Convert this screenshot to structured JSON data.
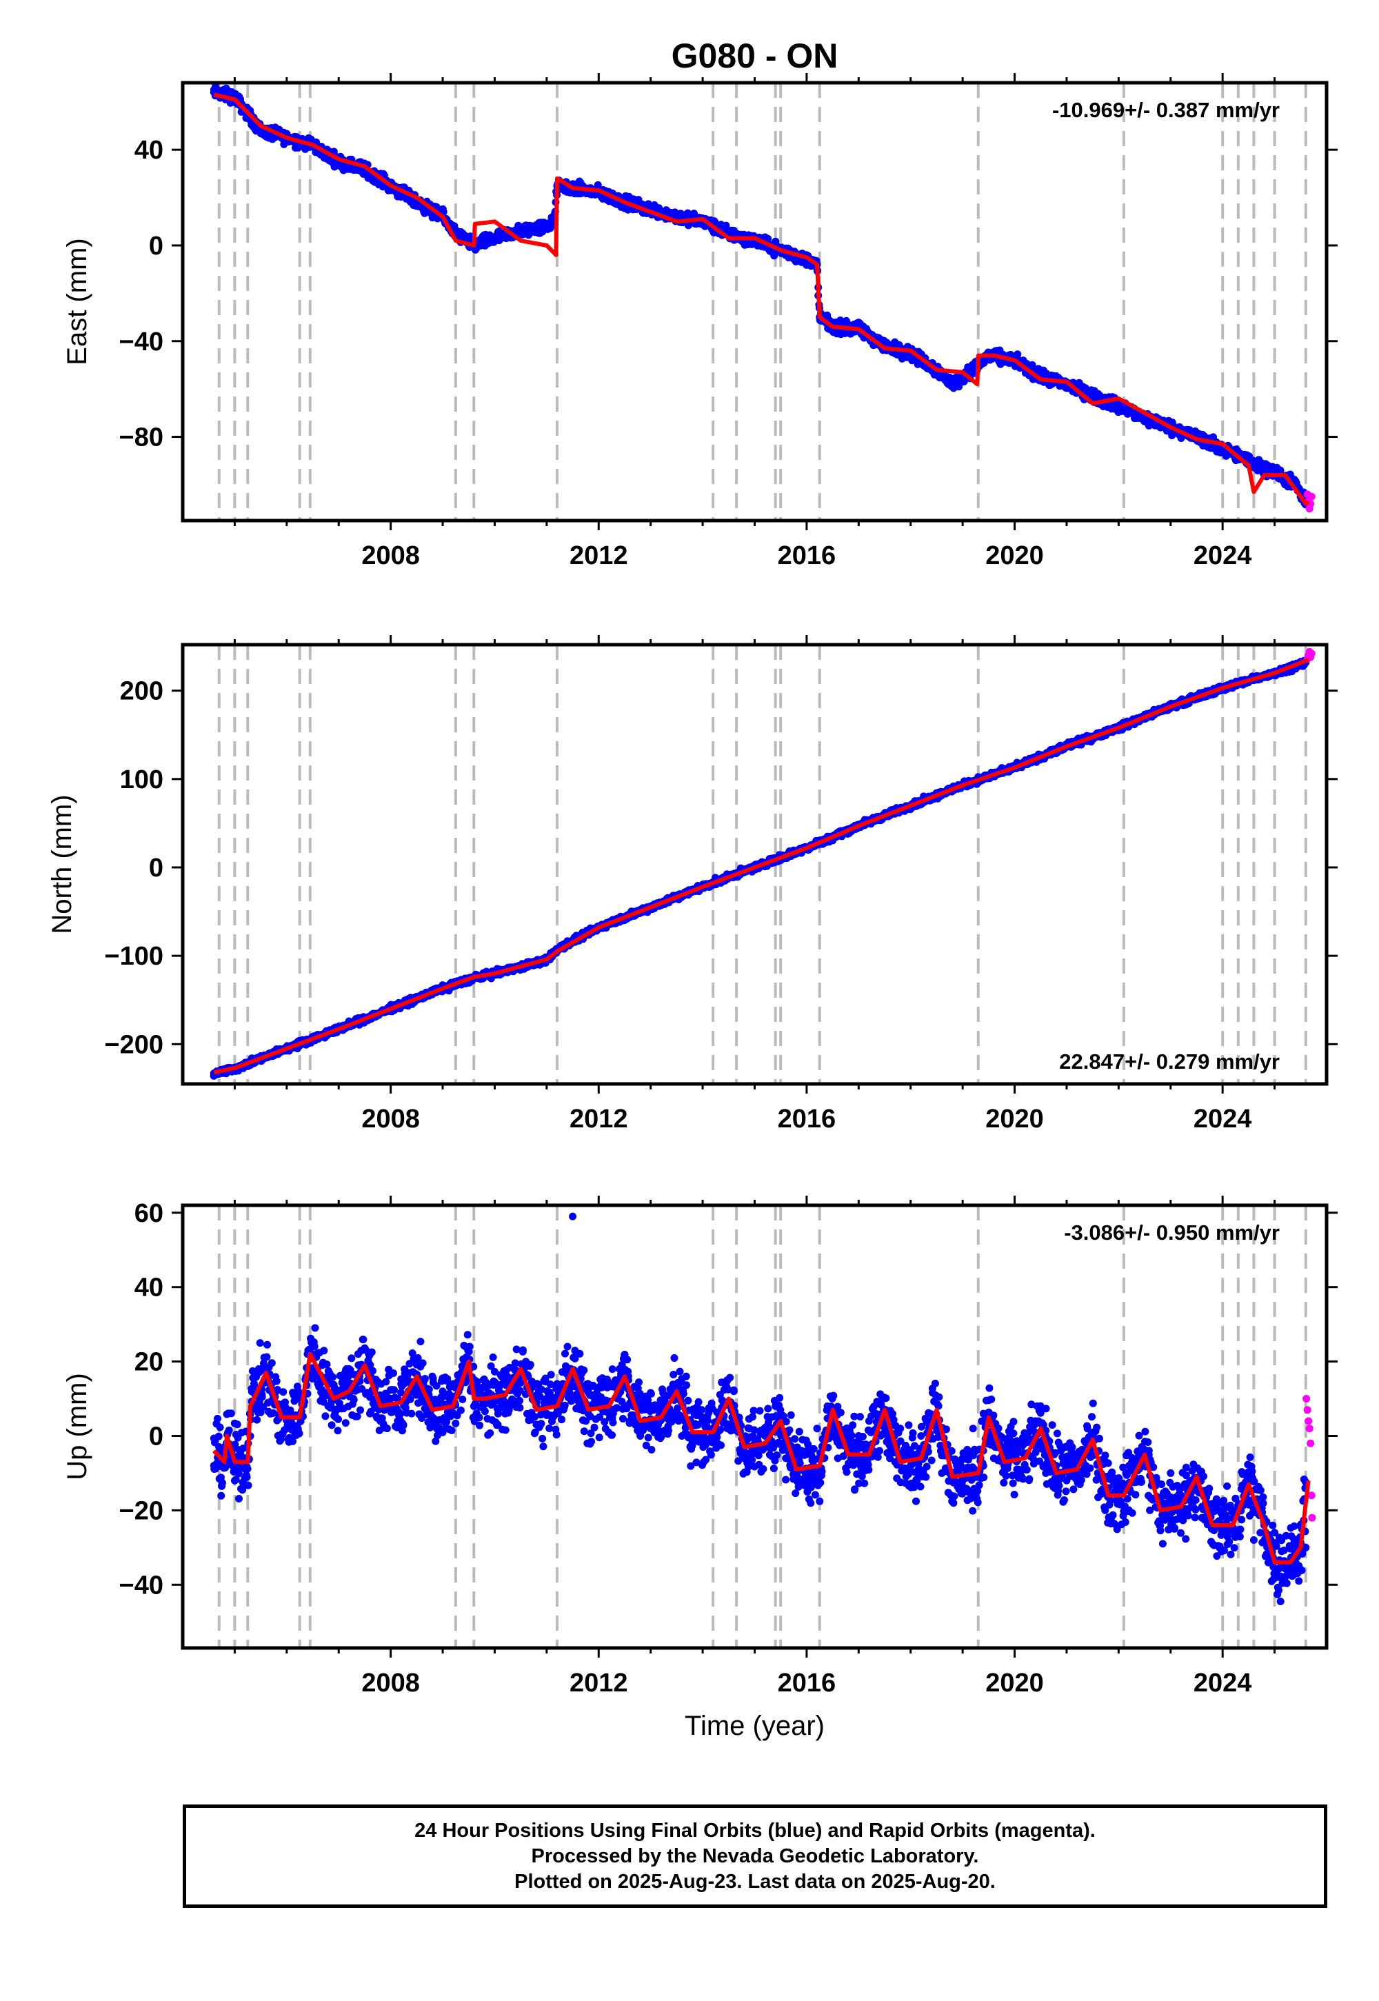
{
  "chart_data": {
    "type": "scatter",
    "title": "G080 - ON",
    "xlabel": "Time (year)",
    "x_range": [
      2004.0,
      2026.0
    ],
    "x_ticks": [
      2008,
      2012,
      2016,
      2020,
      2024
    ],
    "legend": "none",
    "grid": false,
    "colors": {
      "final": "#0000ff",
      "rapid": "#ff00ff",
      "model": "#ff0000",
      "steps": "#bbbbbb"
    },
    "step_epochs": [
      2004.7,
      2005.0,
      2005.25,
      2006.25,
      2006.45,
      2009.25,
      2009.6,
      2011.2,
      2014.2,
      2014.65,
      2015.4,
      2015.5,
      2016.25,
      2019.3,
      2022.1,
      2024.0,
      2024.3,
      2024.6,
      2025.0,
      2025.6
    ],
    "panels": [
      {
        "ylabel": "East (mm)",
        "ylim": [
          -115,
          68
        ],
        "y_ticks": [
          -80,
          -40,
          0,
          40
        ],
        "rate_text": "-10.969+/- 0.387 mm/yr",
        "rate_position": "top-right",
        "series": [
          {
            "name": "Final Orbits",
            "kind": "points",
            "x": [
              2004.6,
              2005.0,
              2005.5,
              2006.0,
              2006.5,
              2007.0,
              2007.5,
              2008.0,
              2008.5,
              2009.0,
              2009.25,
              2009.6,
              2010.0,
              2010.5,
              2011.0,
              2011.15,
              2011.2,
              2011.5,
              2012.0,
              2012.5,
              2013.0,
              2013.5,
              2014.0,
              2014.5,
              2015.0,
              2015.5,
              2016.0,
              2016.2,
              2016.25,
              2016.5,
              2017.0,
              2017.5,
              2018.0,
              2018.5,
              2018.8,
              2019.2,
              2019.5,
              2020.0,
              2020.5,
              2021.0,
              2021.5,
              2022.0,
              2022.5,
              2023.0,
              2023.5,
              2024.0,
              2024.5,
              2025.0,
              2025.4,
              2025.6
            ],
            "y": [
              64,
              62,
              48,
              45,
              42,
              35,
              32,
              25,
              18,
              12,
              5,
              0,
              3,
              6,
              8,
              10,
              25,
              24,
              22,
              18,
              15,
              12,
              10,
              5,
              2,
              -2,
              -6,
              -8,
              -30,
              -34,
              -35,
              -42,
              -45,
              -52,
              -58,
              -52,
              -46,
              -48,
              -55,
              -58,
              -63,
              -67,
              -72,
              -76,
              -80,
              -85,
              -90,
              -95,
              -100,
              -108
            ]
          },
          {
            "name": "Rapid Orbits",
            "kind": "points",
            "x": [
              2025.63,
              2025.65,
              2025.67,
              2025.69,
              2025.71
            ],
            "y": [
              -104,
              -107,
              -110,
              -108,
              -105
            ]
          },
          {
            "name": "Model",
            "kind": "line",
            "x": [
              2004.6,
              2005.0,
              2005.5,
              2006.0,
              2006.5,
              2007.0,
              2007.5,
              2008.0,
              2008.5,
              2009.0,
              2009.25,
              2009.6,
              2009.62,
              2010.0,
              2010.5,
              2011.0,
              2011.18,
              2011.2,
              2011.5,
              2012.0,
              2012.5,
              2013.0,
              2013.5,
              2014.0,
              2014.5,
              2015.0,
              2015.5,
              2016.0,
              2016.2,
              2016.25,
              2016.5,
              2017.0,
              2017.5,
              2018.0,
              2018.5,
              2019.0,
              2019.28,
              2019.3,
              2019.6,
              2020.0,
              2020.5,
              2021.0,
              2021.5,
              2022.0,
              2022.5,
              2023.0,
              2023.5,
              2024.0,
              2024.5,
              2024.6,
              2024.8,
              2025.2,
              2025.6,
              2025.65
            ],
            "y": [
              63,
              61,
              50,
              45,
              42,
              36,
              33,
              25,
              20,
              12,
              2,
              0,
              9,
              10,
              2,
              0,
              -4,
              28,
              24,
              23,
              18,
              14,
              10,
              11,
              3,
              3,
              -2,
              -5,
              -8,
              -30,
              -34,
              -35,
              -43,
              -44,
              -52,
              -53,
              -58,
              -46,
              -46,
              -48,
              -56,
              -57,
              -66,
              -64,
              -70,
              -76,
              -81,
              -83,
              -92,
              -103,
              -96,
              -96,
              -108,
              -107
            ]
          }
        ]
      },
      {
        "ylabel": "North (mm)",
        "ylim": [
          -245,
          252
        ],
        "y_ticks": [
          -200,
          -100,
          0,
          100,
          200
        ],
        "rate_text": "22.847+/- 0.279 mm/yr",
        "rate_position": "bottom-right",
        "series": [
          {
            "name": "Final Orbits",
            "kind": "points",
            "x": [
              2004.6,
              2005.0,
              2006.0,
              2007.0,
              2008.0,
              2009.0,
              2009.6,
              2010.0,
              2011.0,
              2011.2,
              2012.0,
              2013.0,
              2014.0,
              2015.0,
              2016.0,
              2017.0,
              2018.0,
              2019.0,
              2020.0,
              2021.0,
              2022.0,
              2023.0,
              2024.0,
              2025.0,
              2025.6
            ],
            "y": [
              -233,
              -228,
              -205,
              -183,
              -160,
              -137,
              -125,
              -120,
              -105,
              -93,
              -68,
              -45,
              -22,
              0,
              22,
              47,
              70,
              93,
              113,
              137,
              158,
              182,
              203,
              220,
              232
            ]
          },
          {
            "name": "Rapid Orbits",
            "kind": "points",
            "x": [
              2025.63,
              2025.65,
              2025.67,
              2025.69,
              2025.71
            ],
            "y": [
              236,
              240,
              244,
              238,
              242
            ]
          },
          {
            "name": "Model",
            "kind": "line",
            "x": [
              2004.6,
              2005.0,
              2006.0,
              2007.0,
              2008.0,
              2009.0,
              2009.6,
              2010.0,
              2011.0,
              2011.2,
              2012.0,
              2013.0,
              2014.0,
              2015.0,
              2016.0,
              2017.0,
              2018.0,
              2019.0,
              2020.0,
              2021.0,
              2022.0,
              2023.0,
              2024.0,
              2025.0,
              2025.65
            ],
            "y": [
              -232,
              -227,
              -205,
              -183,
              -160,
              -137,
              -124,
              -120,
              -104,
              -95,
              -68,
              -45,
              -22,
              0,
              22,
              47,
              70,
              93,
              113,
              137,
              158,
              182,
              203,
              220,
              235
            ]
          }
        ]
      },
      {
        "ylabel": "Up (mm)",
        "ylim": [
          -57,
          62
        ],
        "y_ticks": [
          -40,
          -20,
          0,
          20,
          40,
          60
        ],
        "rate_text": "-3.086+/- 0.950 mm/yr",
        "rate_position": "top-right",
        "series": [
          {
            "name": "Final Orbits",
            "kind": "points",
            "x": [
              2004.6,
              2004.8,
              2005.0,
              2005.2,
              2005.4,
              2005.6,
              2005.8,
              2006.0,
              2006.2,
              2006.4,
              2006.6,
              2006.8,
              2007.0,
              2007.2,
              2007.4,
              2007.6,
              2007.8,
              2008.0,
              2008.2,
              2008.4,
              2008.6,
              2008.8,
              2009.0,
              2009.2,
              2009.4,
              2009.6,
              2009.8,
              2010.0,
              2010.2,
              2010.4,
              2010.6,
              2010.8,
              2011.0,
              2011.2,
              2011.4,
              2011.5,
              2011.6,
              2011.8,
              2012.0,
              2012.2,
              2012.4,
              2012.6,
              2012.8,
              2013.0,
              2013.2,
              2013.4,
              2013.6,
              2013.8,
              2014.0,
              2014.2,
              2014.4,
              2014.6,
              2014.8,
              2015.0,
              2015.2,
              2015.4,
              2015.6,
              2015.8,
              2016.0,
              2016.2,
              2016.4,
              2016.6,
              2016.8,
              2017.0,
              2017.2,
              2017.4,
              2017.6,
              2017.8,
              2018.0,
              2018.2,
              2018.4,
              2018.6,
              2018.8,
              2019.0,
              2019.2,
              2019.4,
              2019.6,
              2019.8,
              2020.0,
              2020.2,
              2020.4,
              2020.6,
              2020.8,
              2021.0,
              2021.2,
              2021.4,
              2021.6,
              2021.8,
              2022.0,
              2022.2,
              2022.4,
              2022.6,
              2022.8,
              2023.0,
              2023.2,
              2023.4,
              2023.6,
              2023.8,
              2024.0,
              2024.2,
              2024.4,
              2024.6,
              2024.8,
              2025.0,
              2025.2,
              2025.4,
              2025.6
            ],
            "y": [
              -8,
              -3,
              -12,
              -6,
              8,
              18,
              12,
              2,
              10,
              22,
              14,
              8,
              12,
              18,
              16,
              6,
              4,
              10,
              14,
              6,
              10,
              16,
              12,
              14,
              18,
              8,
              10,
              14,
              6,
              12,
              20,
              8,
              6,
              14,
              24,
              59,
              15,
              6,
              8,
              14,
              18,
              4,
              0,
              2,
              8,
              12,
              0,
              -2,
              4,
              2,
              8,
              12,
              -4,
              -2,
              0,
              8,
              -6,
              -10,
              -4,
              2,
              8,
              -6,
              -2,
              0,
              4,
              -4,
              -6,
              2,
              -8,
              0,
              4,
              -10,
              -12,
              -6,
              2,
              6,
              -6,
              -8,
              -4,
              0,
              4,
              -10,
              -8,
              -12,
              -6,
              2,
              -10,
              -14,
              -18,
              -8,
              -6,
              -20,
              -18,
              -10,
              -16,
              -12,
              -22,
              -20,
              -24,
              -20,
              -14,
              -28,
              -24,
              -26,
              -38,
              -34,
              -30
            ]
          },
          {
            "name": "Rapid Orbits",
            "kind": "points",
            "x": [
              2025.61,
              2025.63,
              2025.65,
              2025.67,
              2025.69,
              2025.71,
              2025.72
            ],
            "y": [
              10,
              7,
              4,
              2,
              -2,
              -16,
              -22
            ]
          },
          {
            "name": "Model",
            "kind": "line",
            "x": [
              2004.6,
              2004.8,
              2004.85,
              2005.0,
              2005.25,
              2005.3,
              2005.6,
              2005.9,
              2006.25,
              2006.45,
              2006.6,
              2006.9,
              2007.2,
              2007.5,
              2007.8,
              2008.2,
              2008.5,
              2008.8,
              2009.2,
              2009.5,
              2009.6,
              2009.8,
              2010.2,
              2010.5,
              2010.8,
              2011.2,
              2011.5,
              2011.8,
              2012.2,
              2012.5,
              2012.8,
              2013.2,
              2013.5,
              2013.8,
              2014.2,
              2014.5,
              2014.8,
              2015.2,
              2015.5,
              2015.8,
              2016.25,
              2016.5,
              2016.8,
              2017.2,
              2017.5,
              2017.8,
              2018.2,
              2018.5,
              2018.8,
              2019.3,
              2019.5,
              2019.8,
              2020.2,
              2020.5,
              2020.8,
              2021.2,
              2021.5,
              2021.8,
              2022.1,
              2022.5,
              2022.8,
              2023.2,
              2023.5,
              2023.8,
              2024.2,
              2024.5,
              2024.8,
              2025.0,
              2025.3,
              2025.5,
              2025.65
            ],
            "y": [
              -4,
              -7,
              0,
              -7,
              -7,
              8,
              17,
              5,
              5,
              22,
              18,
              10,
              12,
              19,
              8,
              9,
              16,
              7,
              8,
              20,
              10,
              10,
              11,
              18,
              7,
              8,
              18,
              7,
              8,
              16,
              4,
              5,
              12,
              1,
              1,
              10,
              -3,
              -2,
              4,
              -9,
              -8,
              7,
              -5,
              -5,
              7,
              -7,
              -6,
              7,
              -11,
              -10,
              5,
              -7,
              -6,
              2,
              -10,
              -9,
              -1,
              -16,
              -16,
              -5,
              -20,
              -19,
              -11,
              -24,
              -24,
              -13,
              -24,
              -34,
              -34,
              -30,
              -12
            ]
          }
        ]
      }
    ]
  },
  "footer": {
    "line1": "24 Hour Positions Using Final Orbits (blue) and Rapid Orbits (magenta).",
    "line2": "Processed by the Nevada Geodetic Laboratory.",
    "line3": "Plotted on 2025-Aug-23. Last data on 2025-Aug-20."
  }
}
